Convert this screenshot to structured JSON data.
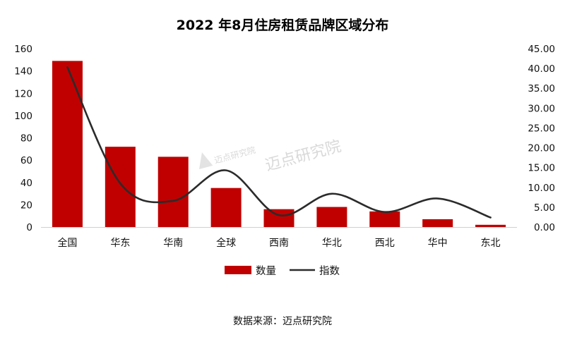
{
  "chart_data": {
    "type": "bar",
    "title": "2022 年8月住房租赁品牌区域分布",
    "categories": [
      "全国",
      "华东",
      "华南",
      "全球",
      "西南",
      "华北",
      "西北",
      "华中",
      "东北"
    ],
    "series": [
      {
        "name": "数量",
        "type": "bar",
        "axis": "left",
        "color": "#c00000",
        "values": [
          149,
          72,
          63,
          35,
          16,
          18,
          14,
          7,
          2
        ]
      },
      {
        "name": "指数",
        "type": "line",
        "axis": "right",
        "color": "#2b2b2b",
        "values": [
          40.3,
          11.0,
          6.6,
          14.3,
          3.0,
          8.4,
          3.8,
          7.2,
          2.4
        ]
      }
    ],
    "left_axis": {
      "ylim": [
        0,
        160
      ],
      "ticks": [
        "0",
        "20",
        "40",
        "60",
        "80",
        "100",
        "120",
        "140",
        "160"
      ]
    },
    "right_axis": {
      "ylim": [
        0,
        45
      ],
      "ticks": [
        "0.00",
        "5.00",
        "10.00",
        "15.00",
        "20.00",
        "25.00",
        "30.00",
        "35.00",
        "40.00",
        "45.00"
      ]
    },
    "grid": false,
    "legend": {
      "position": "bottom"
    }
  },
  "watermark": "迈点研究院",
  "source_text": "数据来源：迈点研究院"
}
